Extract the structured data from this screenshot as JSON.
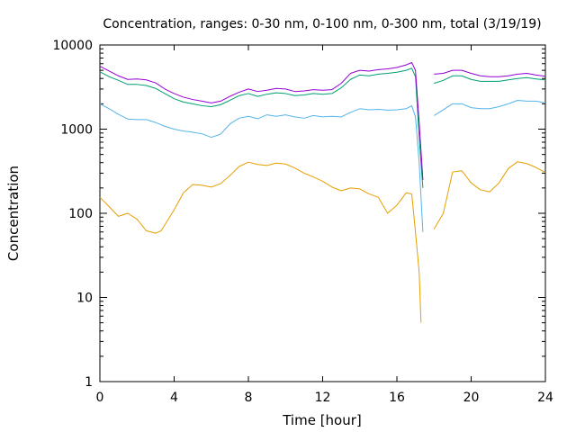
{
  "chart_data": {
    "type": "line",
    "title": "Concentration, ranges: 0-30 nm, 0-100 nm, 0-300 nm, total (3/19/19)",
    "xlabel": "Time [hour]",
    "ylabel": "Concentration",
    "xlim": [
      0,
      24
    ],
    "ylim": [
      1,
      10000
    ],
    "yscale": "log",
    "grid": false,
    "legend": "none",
    "x_ticks": [
      "0",
      "4",
      "8",
      "12",
      "16",
      "20",
      "24"
    ],
    "y_ticks": [
      "1",
      "10",
      "100",
      "1000",
      "10000"
    ],
    "series": [
      {
        "color": "#e69f00",
        "values": [
          [
            0,
            155
          ],
          [
            0.5,
            120
          ],
          [
            1,
            92
          ],
          [
            1.5,
            100
          ],
          [
            2,
            85
          ],
          [
            2.5,
            62
          ],
          [
            3,
            58
          ],
          [
            3.3,
            62
          ],
          [
            4,
            110
          ],
          [
            4.5,
            175
          ],
          [
            5,
            220
          ],
          [
            5.5,
            215
          ],
          [
            6,
            205
          ],
          [
            6.5,
            225
          ],
          [
            7,
            280
          ],
          [
            7.5,
            360
          ],
          [
            8,
            405
          ],
          [
            8.5,
            380
          ],
          [
            9,
            370
          ],
          [
            9.5,
            395
          ],
          [
            10,
            385
          ],
          [
            10.5,
            345
          ],
          [
            11,
            300
          ],
          [
            11.5,
            270
          ],
          [
            12,
            240
          ],
          [
            12.5,
            205
          ],
          [
            13,
            185
          ],
          [
            13.5,
            200
          ],
          [
            14,
            195
          ],
          [
            14.5,
            170
          ],
          [
            15,
            155
          ],
          [
            15.5,
            100
          ],
          [
            16,
            125
          ],
          [
            16.5,
            175
          ],
          [
            16.8,
            170
          ],
          [
            17,
            60
          ],
          [
            17.2,
            20
          ],
          [
            17.3,
            5
          ],
          [
            17.5,
            null
          ],
          [
            18,
            65
          ],
          [
            18.5,
            100
          ],
          [
            19,
            310
          ],
          [
            19.5,
            320
          ],
          [
            20,
            230
          ],
          [
            20.5,
            190
          ],
          [
            21,
            180
          ],
          [
            21.5,
            230
          ],
          [
            22,
            340
          ],
          [
            22.5,
            410
          ],
          [
            23,
            390
          ],
          [
            23.5,
            350
          ],
          [
            24,
            305
          ]
        ]
      },
      {
        "color": "#56b4e9",
        "values": [
          [
            0,
            2000
          ],
          [
            0.5,
            1750
          ],
          [
            1,
            1500
          ],
          [
            1.5,
            1320
          ],
          [
            2,
            1300
          ],
          [
            2.5,
            1300
          ],
          [
            3,
            1200
          ],
          [
            3.5,
            1080
          ],
          [
            4,
            1000
          ],
          [
            4.5,
            950
          ],
          [
            5,
            920
          ],
          [
            5.5,
            880
          ],
          [
            6,
            800
          ],
          [
            6.5,
            870
          ],
          [
            7,
            1150
          ],
          [
            7.5,
            1350
          ],
          [
            8,
            1420
          ],
          [
            8.5,
            1330
          ],
          [
            9,
            1480
          ],
          [
            9.5,
            1420
          ],
          [
            10,
            1480
          ],
          [
            10.5,
            1400
          ],
          [
            11,
            1350
          ],
          [
            11.5,
            1450
          ],
          [
            12,
            1400
          ],
          [
            12.5,
            1420
          ],
          [
            13,
            1400
          ],
          [
            13.5,
            1580
          ],
          [
            14,
            1750
          ],
          [
            14.5,
            1700
          ],
          [
            15,
            1720
          ],
          [
            15.5,
            1680
          ],
          [
            16,
            1700
          ],
          [
            16.5,
            1750
          ],
          [
            16.8,
            1900
          ],
          [
            17,
            1400
          ],
          [
            17.2,
            400
          ],
          [
            17.4,
            60
          ],
          [
            17.5,
            null
          ],
          [
            18,
            1450
          ],
          [
            18.5,
            1700
          ],
          [
            19,
            2000
          ],
          [
            19.5,
            2000
          ],
          [
            20,
            1800
          ],
          [
            20.5,
            1750
          ],
          [
            21,
            1750
          ],
          [
            21.5,
            1850
          ],
          [
            22,
            2000
          ],
          [
            22.5,
            2200
          ],
          [
            23,
            2150
          ],
          [
            23.5,
            2150
          ],
          [
            24,
            2050
          ]
        ]
      },
      {
        "color": "#009e73",
        "values": [
          [
            0,
            4800
          ],
          [
            0.5,
            4200
          ],
          [
            1,
            3800
          ],
          [
            1.5,
            3400
          ],
          [
            2,
            3400
          ],
          [
            2.5,
            3300
          ],
          [
            3,
            3050
          ],
          [
            3.5,
            2650
          ],
          [
            4,
            2300
          ],
          [
            4.5,
            2100
          ],
          [
            5,
            2000
          ],
          [
            5.5,
            1900
          ],
          [
            6,
            1850
          ],
          [
            6.5,
            1950
          ],
          [
            7,
            2200
          ],
          [
            7.5,
            2500
          ],
          [
            8,
            2650
          ],
          [
            8.5,
            2450
          ],
          [
            9,
            2600
          ],
          [
            9.5,
            2700
          ],
          [
            10,
            2650
          ],
          [
            10.5,
            2500
          ],
          [
            11,
            2550
          ],
          [
            11.5,
            2650
          ],
          [
            12,
            2600
          ],
          [
            12.5,
            2650
          ],
          [
            13,
            3100
          ],
          [
            13.5,
            3900
          ],
          [
            14,
            4400
          ],
          [
            14.5,
            4300
          ],
          [
            15,
            4500
          ],
          [
            15.5,
            4600
          ],
          [
            16,
            4750
          ],
          [
            16.5,
            5000
          ],
          [
            16.8,
            5300
          ],
          [
            17,
            4200
          ],
          [
            17.2,
            800
          ],
          [
            17.4,
            200
          ],
          [
            17.5,
            null
          ],
          [
            18,
            3500
          ],
          [
            18.5,
            3800
          ],
          [
            19,
            4300
          ],
          [
            19.5,
            4300
          ],
          [
            20,
            3900
          ],
          [
            20.5,
            3700
          ],
          [
            21,
            3700
          ],
          [
            21.5,
            3700
          ],
          [
            22,
            3850
          ],
          [
            22.5,
            4000
          ],
          [
            23,
            4100
          ],
          [
            23.5,
            3950
          ],
          [
            24,
            3850
          ]
        ]
      },
      {
        "color": "#9400d3",
        "values": [
          [
            0,
            5600
          ],
          [
            0.5,
            4900
          ],
          [
            1,
            4300
          ],
          [
            1.5,
            3900
          ],
          [
            2,
            3950
          ],
          [
            2.5,
            3850
          ],
          [
            3,
            3550
          ],
          [
            3.5,
            3000
          ],
          [
            4,
            2650
          ],
          [
            4.5,
            2400
          ],
          [
            5,
            2250
          ],
          [
            5.5,
            2150
          ],
          [
            6,
            2050
          ],
          [
            6.5,
            2150
          ],
          [
            7,
            2450
          ],
          [
            7.5,
            2750
          ],
          [
            8,
            3000
          ],
          [
            8.5,
            2800
          ],
          [
            9,
            2900
          ],
          [
            9.5,
            3050
          ],
          [
            10,
            3000
          ],
          [
            10.5,
            2800
          ],
          [
            11,
            2850
          ],
          [
            11.5,
            2950
          ],
          [
            12,
            2900
          ],
          [
            12.5,
            2950
          ],
          [
            13,
            3500
          ],
          [
            13.5,
            4600
          ],
          [
            14,
            5000
          ],
          [
            14.5,
            4900
          ],
          [
            15,
            5100
          ],
          [
            15.5,
            5200
          ],
          [
            16,
            5400
          ],
          [
            16.5,
            5800
          ],
          [
            16.8,
            6200
          ],
          [
            17,
            5000
          ],
          [
            17.2,
            1200
          ],
          [
            17.4,
            250
          ],
          [
            17.5,
            null
          ],
          [
            18,
            4500
          ],
          [
            18.5,
            4600
          ],
          [
            19,
            5000
          ],
          [
            19.5,
            5000
          ],
          [
            20,
            4600
          ],
          [
            20.5,
            4300
          ],
          [
            21,
            4200
          ],
          [
            21.5,
            4200
          ],
          [
            22,
            4300
          ],
          [
            22.5,
            4500
          ],
          [
            23,
            4600
          ],
          [
            23.5,
            4400
          ],
          [
            24,
            4250
          ]
        ]
      }
    ]
  }
}
